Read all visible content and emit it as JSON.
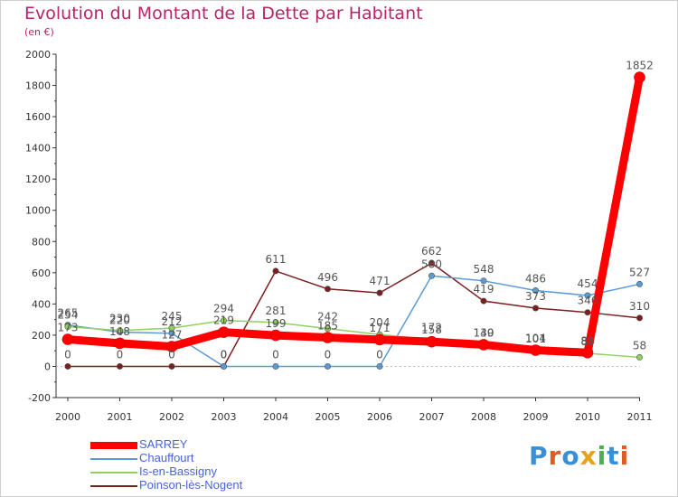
{
  "title": "Evolution du Montant de la Dette par Habitant",
  "subtitle": "(en €)",
  "brand": {
    "text": "Proxiti",
    "colors": [
      "#3a8fd6",
      "#e05a28",
      "#3a8fd6",
      "#e8a21d",
      "#4caf50",
      "#3a8fd6",
      "#e05a28"
    ]
  },
  "chart_data": {
    "type": "line",
    "x": [
      "2000",
      "2001",
      "2002",
      "2003",
      "2004",
      "2005",
      "2006",
      "2007",
      "2008",
      "2009",
      "2010",
      "2011"
    ],
    "ylim": [
      -200,
      2000
    ],
    "yticks": [
      "-200",
      "0",
      "200",
      "400",
      "600",
      "800",
      "1000",
      "1200",
      "1400",
      "1600",
      "1800",
      "2000"
    ],
    "grid": false,
    "legend_position": "bottom-left",
    "series": [
      {
        "name": "SARREY",
        "color": "#ff0000",
        "values": [
          173,
          148,
          127,
          219,
          199,
          185,
          171,
          158,
          139,
          104,
          88,
          1852
        ],
        "labels": [
          "173",
          "148",
          "127",
          "219",
          "199",
          "185",
          "171",
          "158",
          "139",
          "104",
          "88",
          "1852"
        ]
      },
      {
        "name": "Chauffourt",
        "color": "#5b9bd5",
        "values": [
          265,
          220,
          212,
          0,
          0,
          0,
          0,
          580,
          548,
          486,
          454,
          527
        ],
        "labels": [
          "265",
          "220",
          "212",
          "0",
          "0",
          "0",
          "0",
          "580",
          "548",
          "486",
          "454",
          "527"
        ]
      },
      {
        "name": "Is-en-Bassigny",
        "color": "#90d060",
        "values": [
          254,
          230,
          245,
          294,
          281,
          242,
          204,
          172,
          140,
          101,
          84,
          58
        ],
        "labels": [
          "254",
          "230",
          "245",
          "294",
          "281",
          "242",
          "204",
          "172",
          "140",
          "101",
          "84",
          "58"
        ]
      },
      {
        "name": "Poinson-lès-Nogent",
        "color": "#7b1e1e",
        "values": [
          0,
          0,
          0,
          0,
          611,
          496,
          471,
          662,
          419,
          373,
          346,
          310
        ],
        "labels": [
          "0",
          "0",
          "0",
          "0",
          "611",
          "496",
          "471",
          "662",
          "419",
          "373",
          "346",
          "310"
        ]
      }
    ]
  }
}
